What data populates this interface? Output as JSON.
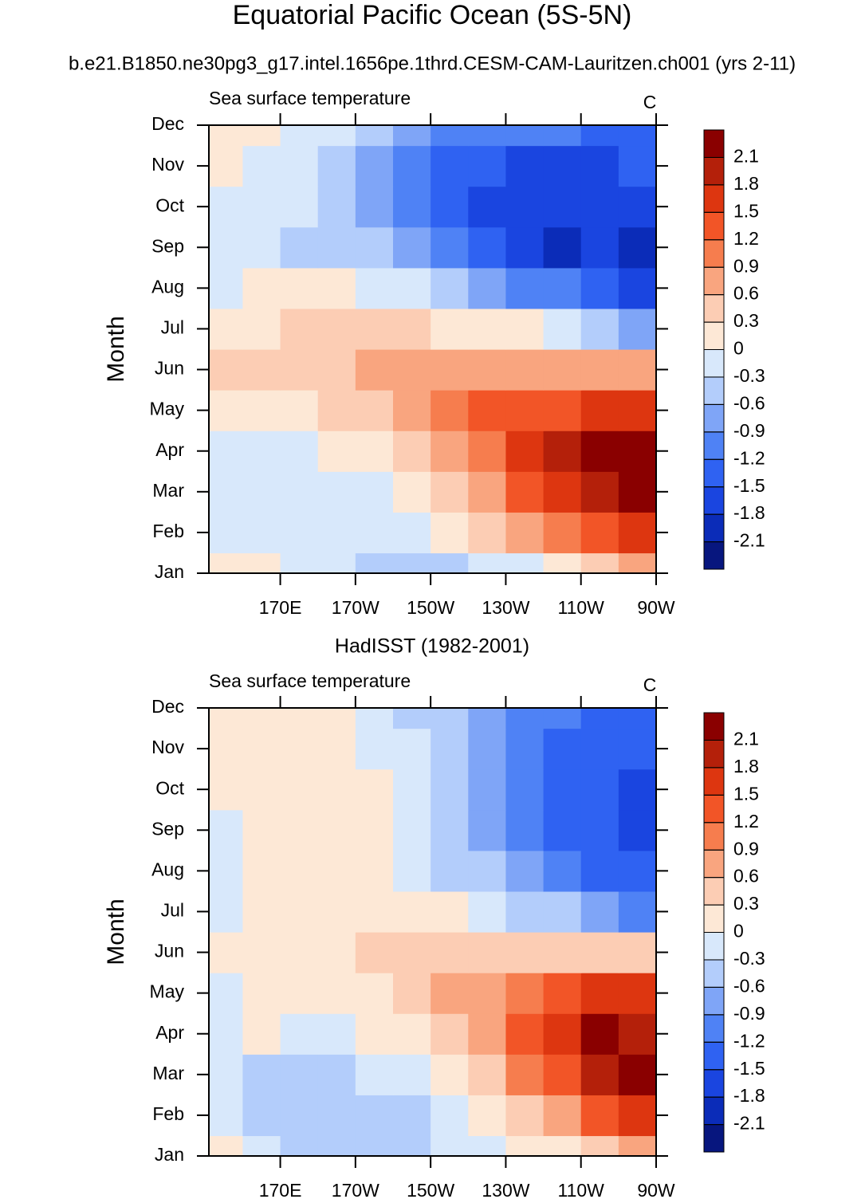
{
  "title": "Equatorial Pacific Ocean (5S-5N)",
  "subtitle": "b.e21.B1850.ne30pg3_g17.intel.1656pe.1thrd.CESM-CAM-Lauritzen.ch001 (yrs 2-11)",
  "chart_data": [
    {
      "type": "contour",
      "left_label": "Sea surface temperature",
      "right_label": "C",
      "y_label": "Month",
      "categories": [
        "Jan",
        "Feb",
        "Mar",
        "Apr",
        "May",
        "Jun",
        "Jul",
        "Aug",
        "Sep",
        "Oct",
        "Nov",
        "Dec"
      ],
      "x": [
        155,
        165,
        175,
        185,
        195,
        205,
        215,
        225,
        235,
        245,
        255,
        265
      ],
      "xlim": [
        151,
        270
      ],
      "xticks": [
        {
          "value": 170,
          "label": "170E"
        },
        {
          "value": 190,
          "label": "170W"
        },
        {
          "value": 210,
          "label": "150W"
        },
        {
          "value": 230,
          "label": "130W"
        },
        {
          "value": 250,
          "label": "110W"
        },
        {
          "value": 270,
          "label": "90W"
        }
      ],
      "z": [
        [
          0.1,
          0.1,
          -0.1,
          -0.2,
          -0.4,
          -0.4,
          -0.3,
          -0.2,
          0,
          0.3,
          0.6,
          0.9
        ],
        [
          -0.1,
          -0.1,
          -0.1,
          -0.1,
          -0.2,
          -0.1,
          0.1,
          0.4,
          0.7,
          1.1,
          1.4,
          1.7
        ],
        [
          -0.1,
          -0.1,
          -0.1,
          -0.1,
          0,
          0.2,
          0.5,
          0.9,
          1.3,
          1.7,
          2.0,
          2.3
        ],
        [
          -0.1,
          -0.1,
          -0.1,
          0.1,
          0.2,
          0.4,
          0.8,
          1.2,
          1.6,
          1.9,
          2.2,
          2.3
        ],
        [
          0.2,
          0.2,
          0.3,
          0.4,
          0.6,
          0.8,
          1.0,
          1.3,
          1.4,
          1.5,
          1.6,
          1.8
        ],
        [
          0.4,
          0.4,
          0.5,
          0.6,
          0.7,
          0.7,
          0.8,
          0.8,
          0.9,
          0.9,
          0.9,
          0.8
        ],
        [
          0.2,
          0.3,
          0.4,
          0.4,
          0.4,
          0.4,
          0.3,
          0.2,
          0.1,
          0,
          -0.3,
          -0.6
        ],
        [
          -0.1,
          0.1,
          0.1,
          0.1,
          0,
          -0.2,
          -0.4,
          -0.7,
          -0.9,
          -1.1,
          -1.3,
          -1.6
        ],
        [
          -0.1,
          -0.1,
          -0.3,
          -0.4,
          -0.5,
          -0.7,
          -1.0,
          -1.3,
          -1.6,
          -1.8,
          -1.6,
          -1.8
        ],
        [
          -0.1,
          -0.1,
          -0.2,
          -0.4,
          -0.7,
          -1.0,
          -1.3,
          -1.6,
          -1.7,
          -1.6,
          -1.7,
          -1.7
        ],
        [
          0.1,
          -0.1,
          -0.2,
          -0.3,
          -0.6,
          -0.9,
          -1.2,
          -1.4,
          -1.5,
          -1.5,
          -1.5,
          -1.4
        ],
        [
          0.1,
          0.1,
          -0.1,
          -0.2,
          -0.4,
          -0.6,
          -0.9,
          -1.0,
          -1.1,
          -1.1,
          -1.2,
          -1.2
        ]
      ],
      "levels": [
        -2.1,
        -1.8,
        -1.5,
        -1.2,
        -0.9,
        -0.6,
        -0.3,
        0,
        0.3,
        0.6,
        0.9,
        1.2,
        1.5,
        1.8,
        2.1
      ],
      "colors": [
        "#07167e",
        "#0b2cb8",
        "#1a45e0",
        "#2f62f2",
        "#4f82f5",
        "#7fa5f7",
        "#b3cdfb",
        "#d8e8fb",
        "#fde8d6",
        "#fccdb4",
        "#f9a57f",
        "#f67d4e",
        "#f25527",
        "#dd3610",
        "#b4200a",
        "#8a0000"
      ]
    },
    {
      "type": "contour",
      "title": "HadISST (1982-2001)",
      "left_label": "Sea surface temperature",
      "right_label": "C",
      "y_label": "Month",
      "categories": [
        "Jan",
        "Feb",
        "Mar",
        "Apr",
        "May",
        "Jun",
        "Jul",
        "Aug",
        "Sep",
        "Oct",
        "Nov",
        "Dec"
      ],
      "x": [
        155,
        165,
        175,
        185,
        195,
        205,
        215,
        225,
        235,
        245,
        255,
        265
      ],
      "xlim": [
        151,
        270
      ],
      "xticks": [
        {
          "value": 170,
          "label": "170E"
        },
        {
          "value": 190,
          "label": "170W"
        },
        {
          "value": 210,
          "label": "150W"
        },
        {
          "value": 230,
          "label": "130W"
        },
        {
          "value": 250,
          "label": "110W"
        },
        {
          "value": 270,
          "label": "90W"
        }
      ],
      "z": [
        [
          0.1,
          -0.2,
          -0.4,
          -0.5,
          -0.4,
          -0.3,
          -0.2,
          -0.1,
          0.1,
          0.3,
          0.6,
          0.9
        ],
        [
          -0.1,
          -0.4,
          -0.5,
          -0.5,
          -0.4,
          -0.3,
          -0.1,
          0.2,
          0.5,
          0.9,
          1.3,
          1.7
        ],
        [
          -0.1,
          -0.3,
          -0.4,
          -0.3,
          -0.2,
          -0.1,
          0.2,
          0.6,
          1.0,
          1.5,
          2.0,
          2.3
        ],
        [
          -0.1,
          0.1,
          -0.1,
          0,
          0.1,
          0.3,
          0.6,
          0.9,
          1.4,
          1.8,
          2.2,
          2.1
        ],
        [
          -0.1,
          0.1,
          0.1,
          0.2,
          0.3,
          0.5,
          0.7,
          0.9,
          1.1,
          1.3,
          1.6,
          1.6
        ],
        [
          0.1,
          0.1,
          0.2,
          0.3,
          0.4,
          0.5,
          0.5,
          0.6,
          0.6,
          0.6,
          0.6,
          0.5
        ],
        [
          -0.1,
          0.1,
          0.2,
          0.3,
          0.3,
          0.2,
          0.1,
          -0.1,
          -0.3,
          -0.5,
          -0.8,
          -0.9
        ],
        [
          -0.1,
          0.1,
          0.2,
          0.2,
          0.1,
          -0.1,
          -0.3,
          -0.5,
          -0.8,
          -1.1,
          -1.3,
          -1.4
        ],
        [
          -0.1,
          0.2,
          0.3,
          0.2,
          0.1,
          -0.1,
          -0.3,
          -0.6,
          -0.9,
          -1.2,
          -1.4,
          -1.6
        ],
        [
          0.1,
          0.1,
          0.2,
          0.1,
          0.1,
          -0.1,
          -0.4,
          -0.7,
          -0.9,
          -1.2,
          -1.4,
          -1.5
        ],
        [
          0.1,
          0.1,
          0.1,
          0.1,
          0,
          -0.2,
          -0.5,
          -0.7,
          -1.0,
          -1.2,
          -1.3,
          -1.3
        ],
        [
          0.1,
          0.1,
          0.1,
          0.1,
          -0.1,
          -0.3,
          -0.4,
          -0.7,
          -0.9,
          -1.1,
          -1.2,
          -1.2
        ]
      ],
      "levels": [
        -2.1,
        -1.8,
        -1.5,
        -1.2,
        -0.9,
        -0.6,
        -0.3,
        0,
        0.3,
        0.6,
        0.9,
        1.2,
        1.5,
        1.8,
        2.1
      ],
      "colors": [
        "#07167e",
        "#0b2cb8",
        "#1a45e0",
        "#2f62f2",
        "#4f82f5",
        "#7fa5f7",
        "#b3cdfb",
        "#d8e8fb",
        "#fde8d6",
        "#fccdb4",
        "#f9a57f",
        "#f67d4e",
        "#f25527",
        "#dd3610",
        "#b4200a",
        "#8a0000"
      ]
    }
  ]
}
